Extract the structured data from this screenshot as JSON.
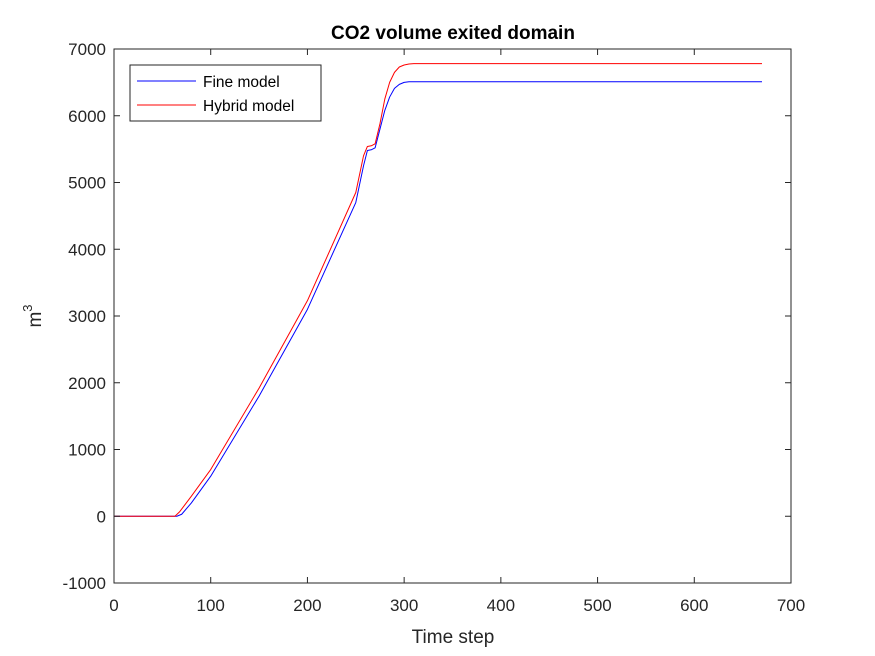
{
  "chart_data": {
    "type": "line",
    "title": "CO2 volume exited domain",
    "xlabel": "Time step",
    "ylabel_base": "m",
    "ylabel_exp": "3",
    "xlim": [
      0,
      700
    ],
    "ylim": [
      -1000,
      7000
    ],
    "xticks": [
      0,
      100,
      200,
      300,
      400,
      500,
      600,
      700
    ],
    "yticks": [
      -1000,
      0,
      1000,
      2000,
      3000,
      4000,
      5000,
      6000,
      7000
    ],
    "grid": false,
    "legend_position": "top-left",
    "series": [
      {
        "name": "Fine model",
        "color": "#0000ff",
        "x": [
          0,
          65,
          70,
          80,
          100,
          150,
          200,
          250,
          258,
          262,
          266,
          270,
          275,
          280,
          285,
          290,
          295,
          300,
          305,
          310,
          320,
          350,
          400,
          500,
          600,
          670
        ],
        "y": [
          0,
          0,
          30,
          200,
          600,
          1800,
          3100,
          4700,
          5250,
          5480,
          5490,
          5520,
          5800,
          6080,
          6280,
          6410,
          6470,
          6500,
          6510,
          6510,
          6510,
          6510,
          6510,
          6510,
          6510,
          6510
        ]
      },
      {
        "name": "Hybrid model",
        "color": "#ff0000",
        "x": [
          0,
          63,
          68,
          80,
          100,
          150,
          200,
          250,
          258,
          262,
          266,
          270,
          275,
          280,
          285,
          290,
          295,
          300,
          305,
          310,
          320,
          350,
          400,
          500,
          600,
          670
        ],
        "y": [
          0,
          0,
          70,
          300,
          700,
          1920,
          3230,
          4850,
          5400,
          5540,
          5550,
          5580,
          5880,
          6250,
          6500,
          6650,
          6730,
          6760,
          6775,
          6780,
          6780,
          6780,
          6780,
          6780,
          6780,
          6780
        ]
      }
    ]
  }
}
